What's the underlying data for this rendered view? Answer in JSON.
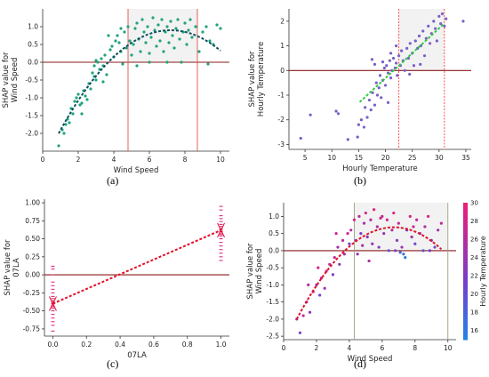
{
  "colors": {
    "axis": "#333333",
    "zero_line": "#8b1a1a",
    "vline_a": "#d9534f",
    "vline_b": "#ff3b3b",
    "vline_d": "#9e9e7e",
    "fit_a": "#0d4f5c",
    "fit_b": "#2ecc40",
    "fit_c": "#e0102a",
    "fit_d": "#e0102a",
    "points_a": "#1fa37a",
    "points_b": "#7a5fc9",
    "points_c": "#e0197a",
    "shade": "#d9d9d9"
  },
  "chart_data": [
    {
      "type": "scatter",
      "caption": "(a)",
      "xlabel": "Wind Speed",
      "ylabel": [
        "SHAP value for",
        "Wind Speed"
      ],
      "xlim": [
        0,
        10.5
      ],
      "ylim": [
        -2.5,
        1.5
      ],
      "xticks": [
        "0",
        "2",
        "4",
        "6",
        "8",
        "10"
      ],
      "yticks": [
        "-2.0",
        "-1.5",
        "-1.0",
        "-0.5",
        "0.0",
        "0.5",
        "1.0"
      ],
      "vlines": [
        4.8,
        8.7
      ],
      "shade_x": [
        4.8,
        8.7
      ],
      "fit": "quadratic",
      "points": [
        [
          0.9,
          -2.35
        ],
        [
          1.1,
          -1.9
        ],
        [
          1.2,
          -2.0
        ],
        [
          1.4,
          -1.6
        ],
        [
          1.5,
          -1.7
        ],
        [
          1.6,
          -1.3
        ],
        [
          1.7,
          -1.45
        ],
        [
          1.8,
          -1.1
        ],
        [
          1.9,
          -1.0
        ],
        [
          2.0,
          -0.9
        ],
        [
          2.1,
          -1.2
        ],
        [
          2.2,
          -1.15
        ],
        [
          2.3,
          -0.8
        ],
        [
          2.4,
          -0.95
        ],
        [
          2.5,
          -1.05
        ],
        [
          2.6,
          -0.6
        ],
        [
          2.7,
          -0.75
        ],
        [
          2.8,
          -0.3
        ],
        [
          2.9,
          -0.4
        ],
        [
          3.0,
          -0.5
        ],
        [
          3.0,
          0.05
        ],
        [
          3.1,
          0.0
        ],
        [
          3.2,
          -0.2
        ],
        [
          3.3,
          0.1
        ],
        [
          3.4,
          -0.1
        ],
        [
          3.5,
          0.2
        ],
        [
          3.6,
          -0.35
        ],
        [
          3.7,
          0.75
        ],
        [
          3.8,
          0.35
        ],
        [
          3.9,
          0.45
        ],
        [
          4.0,
          0.15
        ],
        [
          4.1,
          0.6
        ],
        [
          4.2,
          0.75
        ],
        [
          4.3,
          0.55
        ],
        [
          4.4,
          0.3
        ],
        [
          4.5,
          -0.05
        ],
        [
          4.6,
          0.85
        ],
        [
          4.7,
          0.4
        ],
        [
          4.8,
          1.0
        ],
        [
          4.9,
          0.6
        ],
        [
          5.0,
          0.2
        ],
        [
          5.1,
          0.5
        ],
        [
          5.2,
          0.95
        ],
        [
          5.3,
          1.1
        ],
        [
          5.4,
          0.65
        ],
        [
          5.5,
          0.3
        ],
        [
          5.6,
          1.2
        ],
        [
          5.7,
          0.85
        ],
        [
          5.8,
          0.55
        ],
        [
          5.9,
          1.0
        ],
        [
          6.0,
          0.25
        ],
        [
          6.1,
          0.7
        ],
        [
          6.2,
          1.25
        ],
        [
          6.3,
          0.9
        ],
        [
          6.4,
          0.45
        ],
        [
          6.5,
          1.05
        ],
        [
          6.6,
          0.6
        ],
        [
          6.7,
          1.2
        ],
        [
          6.8,
          0.3
        ],
        [
          6.9,
          0.85
        ],
        [
          7.0,
          1.0
        ],
        [
          7.1,
          0.55
        ],
        [
          7.2,
          1.15
        ],
        [
          7.3,
          0.75
        ],
        [
          7.4,
          0.4
        ],
        [
          7.5,
          0.95
        ],
        [
          7.6,
          1.2
        ],
        [
          7.7,
          0.65
        ],
        [
          7.8,
          0.0
        ],
        [
          7.9,
          0.85
        ],
        [
          8.0,
          1.1
        ],
        [
          8.1,
          0.5
        ],
        [
          8.2,
          0.9
        ],
        [
          8.3,
          1.2
        ],
        [
          8.4,
          0.7
        ],
        [
          8.6,
          1.0
        ],
        [
          8.8,
          0.3
        ],
        [
          9.0,
          0.85
        ],
        [
          9.2,
          1.0
        ],
        [
          9.4,
          0.6
        ],
        [
          9.6,
          0.5
        ],
        [
          9.8,
          1.05
        ],
        [
          10.0,
          0.95
        ],
        [
          1.3,
          -1.75
        ],
        [
          2.2,
          -1.45
        ],
        [
          3.4,
          -0.55
        ],
        [
          6.0,
          0.0
        ],
        [
          7.0,
          0.0
        ],
        [
          5.3,
          -0.1
        ],
        [
          4.4,
          0.95
        ],
        [
          2.9,
          -0.1
        ],
        [
          9.3,
          -0.05
        ]
      ]
    },
    {
      "type": "scatter",
      "caption": "(b)",
      "xlabel": "Hourly Temperature",
      "ylabel": [
        "SHAP value for",
        "Hourly Temperature"
      ],
      "xlim": [
        2,
        36
      ],
      "ylim": [
        -3.2,
        2.5
      ],
      "xticks": [
        "5",
        "10",
        "15",
        "20",
        "25",
        "30",
        "35"
      ],
      "yticks": [
        "-3",
        "-2",
        "-1",
        "0",
        "1",
        "2"
      ],
      "vlines": [
        22.5,
        31
      ],
      "shade_x": [
        22.5,
        31
      ],
      "fit": "linear",
      "fit_range": [
        15.2,
        31
      ],
      "points": [
        [
          4.2,
          -2.75
        ],
        [
          6.0,
          -1.8
        ],
        [
          10.8,
          -1.65
        ],
        [
          11.2,
          -1.75
        ],
        [
          13.0,
          -2.8
        ],
        [
          14.8,
          -2.7
        ],
        [
          15.0,
          -2.2
        ],
        [
          15.5,
          -2.0
        ],
        [
          16.0,
          -2.3
        ],
        [
          16.2,
          -1.5
        ],
        [
          16.6,
          -1.9
        ],
        [
          17.0,
          -1.2
        ],
        [
          17.3,
          -1.6
        ],
        [
          17.6,
          -0.9
        ],
        [
          18.0,
          -1.4
        ],
        [
          18.3,
          -0.5
        ],
        [
          18.5,
          -1.0
        ],
        [
          18.8,
          -0.7
        ],
        [
          19.0,
          -0.2
        ],
        [
          19.2,
          -1.1
        ],
        [
          19.5,
          -0.4
        ],
        [
          19.8,
          0.1
        ],
        [
          20.0,
          -0.6
        ],
        [
          20.2,
          0.2
        ],
        [
          20.5,
          -0.1
        ],
        [
          20.8,
          0.4
        ],
        [
          21.0,
          -0.3
        ],
        [
          21.2,
          0.0
        ],
        [
          21.5,
          0.5
        ],
        [
          21.8,
          0.1
        ],
        [
          22.0,
          0.3
        ],
        [
          22.2,
          -0.2
        ],
        [
          22.5,
          0.6
        ],
        [
          22.8,
          0.2
        ],
        [
          23.0,
          0.8
        ],
        [
          23.3,
          0.4
        ],
        [
          23.6,
          0.0
        ],
        [
          24.0,
          0.9
        ],
        [
          24.3,
          0.5
        ],
        [
          24.6,
          1.1
        ],
        [
          25.0,
          0.7
        ],
        [
          25.3,
          0.2
        ],
        [
          25.6,
          1.2
        ],
        [
          26.0,
          0.9
        ],
        [
          26.3,
          1.4
        ],
        [
          26.6,
          1.0
        ],
        [
          27.0,
          1.6
        ],
        [
          27.3,
          0.6
        ],
        [
          27.6,
          1.3
        ],
        [
          28.0,
          1.8
        ],
        [
          28.3,
          1.1
        ],
        [
          28.6,
          1.5
        ],
        [
          29.0,
          2.0
        ],
        [
          29.3,
          1.7
        ],
        [
          29.6,
          1.2
        ],
        [
          30.0,
          2.2
        ],
        [
          30.3,
          1.9
        ],
        [
          30.6,
          2.3
        ],
        [
          31.0,
          1.8
        ],
        [
          31.3,
          2.1
        ],
        [
          34.5,
          2.0
        ],
        [
          19.5,
          0.35
        ],
        [
          17.5,
          0.45
        ],
        [
          21.0,
          0.7
        ],
        [
          24.5,
          -0.15
        ],
        [
          26.5,
          0.25
        ],
        [
          20.5,
          -1.3
        ],
        [
          18.0,
          0.25
        ],
        [
          22.0,
          1.0
        ]
      ]
    },
    {
      "type": "scatter",
      "caption": "(c)",
      "xlabel": "07LA",
      "ylabel": [
        "SHAP value for",
        "07LA"
      ],
      "xlim": [
        -0.05,
        1.05
      ],
      "ylim": [
        -0.85,
        1.05
      ],
      "xticks": [
        "0.0",
        "0.2",
        "0.4",
        "0.6",
        "0.8",
        "1.0"
      ],
      "yticks": [
        "-0.75",
        "-0.50",
        "-0.25",
        "0.00",
        "0.25",
        "0.50",
        "0.75",
        "1.00"
      ],
      "fit": "linear",
      "fit_line": [
        [
          0.0,
          -0.4
        ],
        [
          1.0,
          0.62
        ]
      ],
      "points": [
        [
          0,
          0.12
        ],
        [
          0,
          0.08
        ],
        [
          0,
          0.0
        ],
        [
          0,
          -0.1
        ],
        [
          0,
          -0.15
        ],
        [
          0,
          -0.2
        ],
        [
          0,
          -0.25
        ],
        [
          0,
          -0.3
        ],
        [
          0,
          -0.33
        ],
        [
          0,
          -0.36
        ],
        [
          0,
          -0.38
        ],
        [
          0,
          -0.4
        ],
        [
          0,
          -0.42
        ],
        [
          0,
          -0.44
        ],
        [
          0,
          -0.46
        ],
        [
          0,
          -0.5
        ],
        [
          0,
          -0.55
        ],
        [
          0,
          -0.6
        ],
        [
          0,
          -0.65
        ],
        [
          0,
          -0.7
        ],
        [
          0,
          -0.78
        ],
        [
          1,
          0.95
        ],
        [
          1,
          0.9
        ],
        [
          1,
          0.82
        ],
        [
          1,
          0.78
        ],
        [
          1,
          0.74
        ],
        [
          1,
          0.7
        ],
        [
          1,
          0.67
        ],
        [
          1,
          0.64
        ],
        [
          1,
          0.62
        ],
        [
          1,
          0.6
        ],
        [
          1,
          0.58
        ],
        [
          1,
          0.56
        ],
        [
          1,
          0.54
        ],
        [
          1,
          0.5
        ],
        [
          1,
          0.45
        ],
        [
          1,
          0.4
        ],
        [
          1,
          0.35
        ],
        [
          1,
          0.3
        ],
        [
          1,
          0.25
        ],
        [
          1,
          0.2
        ]
      ]
    },
    {
      "type": "scatter",
      "caption": "(d)",
      "xlabel": "Wind Speed",
      "ylabel": [
        "SHAP value for",
        "Wind Speed"
      ],
      "colorbar_label": "Hourly Temperature",
      "colorbar_ticks": [
        "30",
        "28",
        "26",
        "24",
        "22",
        "20",
        "18",
        "16"
      ],
      "colorbar_range": [
        15,
        30
      ],
      "xlim": [
        0,
        10.5
      ],
      "ylim": [
        -2.6,
        1.4
      ],
      "xticks": [
        "0",
        "2",
        "4",
        "6",
        "8",
        "10"
      ],
      "yticks": [
        "-2.5",
        "-2.0",
        "-1.5",
        "-1.0",
        "-0.5",
        "0.0",
        "0.5",
        "1.0"
      ],
      "vlines": [
        4.3,
        10
      ],
      "shade_x": [
        4.3,
        10
      ],
      "fit": "quadratic",
      "points": [
        [
          0.8,
          -2.0,
          25
        ],
        [
          1.0,
          -2.4,
          22
        ],
        [
          1.2,
          -1.9,
          27
        ],
        [
          1.4,
          -1.5,
          26
        ],
        [
          1.6,
          -1.8,
          23
        ],
        [
          1.8,
          -1.2,
          28
        ],
        [
          2.0,
          -1.0,
          25
        ],
        [
          2.2,
          -1.3,
          21
        ],
        [
          2.3,
          -0.8,
          27
        ],
        [
          2.5,
          -1.1,
          24
        ],
        [
          2.6,
          -0.6,
          29
        ],
        [
          2.8,
          -0.4,
          26
        ],
        [
          3.0,
          -0.7,
          22
        ],
        [
          3.1,
          -0.2,
          28
        ],
        [
          3.3,
          0.1,
          25
        ],
        [
          3.4,
          -0.4,
          23
        ],
        [
          3.6,
          0.3,
          27
        ],
        [
          3.7,
          -0.1,
          24
        ],
        [
          3.9,
          0.5,
          28
        ],
        [
          4.0,
          0.2,
          21
        ],
        [
          4.1,
          0.6,
          26
        ],
        [
          4.3,
          0.9,
          29
        ],
        [
          4.4,
          0.3,
          24
        ],
        [
          4.6,
          1.0,
          27
        ],
        [
          4.7,
          0.5,
          22
        ],
        [
          4.9,
          0.8,
          25
        ],
        [
          5.0,
          1.1,
          28
        ],
        [
          5.1,
          0.4,
          23
        ],
        [
          5.3,
          0.9,
          26
        ],
        [
          5.4,
          0.2,
          24
        ],
        [
          5.5,
          1.2,
          29
        ],
        [
          5.7,
          0.7,
          25
        ],
        [
          5.8,
          0.1,
          22
        ],
        [
          6.0,
          1.0,
          27
        ],
        [
          6.1,
          0.5,
          24
        ],
        [
          6.3,
          0.9,
          28
        ],
        [
          6.4,
          0.0,
          20
        ],
        [
          6.6,
          0.6,
          26
        ],
        [
          6.7,
          1.1,
          29
        ],
        [
          6.9,
          0.3,
          23
        ],
        [
          7.0,
          0.8,
          27
        ],
        [
          7.1,
          -0.05,
          18
        ],
        [
          7.2,
          0.1,
          24
        ],
        [
          7.3,
          -0.1,
          17
        ],
        [
          7.4,
          -0.2,
          16
        ],
        [
          7.5,
          0.6,
          22
        ],
        [
          7.7,
          1.0,
          28
        ],
        [
          7.8,
          0.4,
          25
        ],
        [
          8.0,
          0.2,
          21
        ],
        [
          8.1,
          0.9,
          27
        ],
        [
          8.3,
          0.5,
          24
        ],
        [
          8.5,
          0.0,
          19
        ],
        [
          8.6,
          0.7,
          26
        ],
        [
          8.8,
          1.0,
          29
        ],
        [
          9.0,
          0.3,
          23
        ],
        [
          9.2,
          0.1,
          20
        ],
        [
          9.4,
          0.6,
          25
        ],
        [
          9.6,
          0.8,
          27
        ],
        [
          4.5,
          -0.1,
          24
        ],
        [
          5.2,
          -0.3,
          26
        ],
        [
          3.2,
          0.5,
          28
        ],
        [
          6.8,
          0.0,
          21
        ],
        [
          8.9,
          0.0,
          22
        ],
        [
          2.1,
          -0.5,
          29
        ],
        [
          1.5,
          -1.0,
          26
        ],
        [
          5.9,
          0.95,
          28
        ],
        [
          7.9,
          0.7,
          27
        ],
        [
          4.8,
          0.15,
          25
        ]
      ]
    }
  ]
}
